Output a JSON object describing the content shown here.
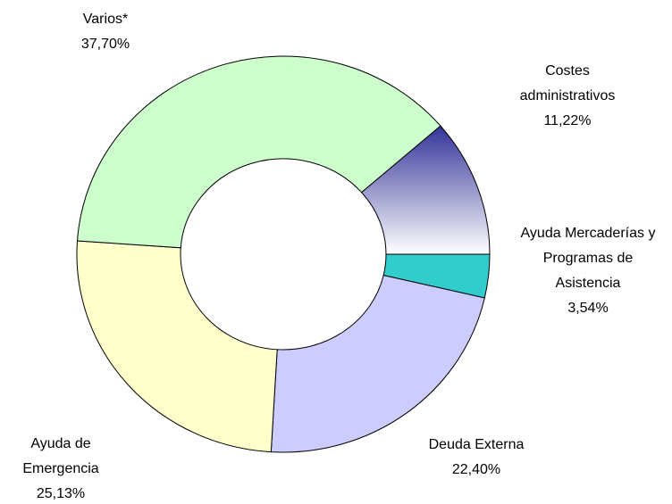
{
  "chart_data": {
    "type": "donut",
    "categories": [
      "Costes administrativos",
      "Ayuda Mercaderías y Programas de Asistencia",
      "Deuda Externa",
      "Ayuda de Emergencia",
      "Varios*"
    ],
    "values": [
      11.22,
      3.54,
      22.4,
      25.13,
      37.7
    ],
    "value_labels": [
      "11,22%",
      "3,54%",
      "22,40%",
      "25,13%",
      "37,70%"
    ],
    "colors": [
      "#333399",
      "#33cccc",
      "#ccccff",
      "#ffffcc",
      "#ccffcc"
    ]
  }
}
